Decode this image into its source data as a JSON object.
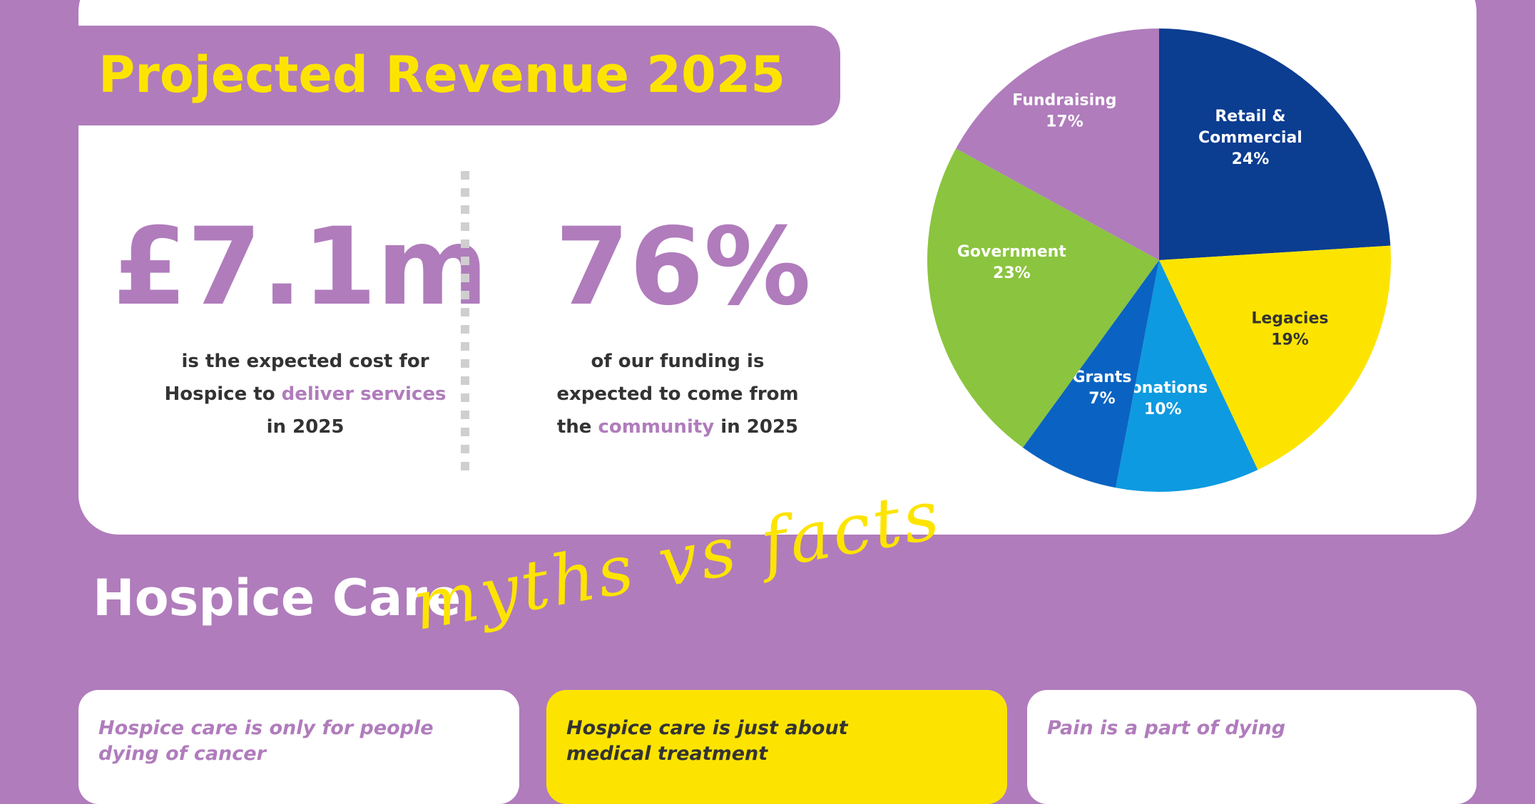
{
  "header": {
    "title": "Projected Revenue 2025"
  },
  "stats": [
    {
      "value": "£7.1m",
      "desc_lines": [
        {
          "before": "is the expected cost for",
          "highlight": "",
          "after": ""
        },
        {
          "before": "Hospice to ",
          "highlight": "deliver services",
          "after": ""
        },
        {
          "before": "in 2025",
          "highlight": "",
          "after": ""
        }
      ]
    },
    {
      "value": "76%",
      "desc_lines": [
        {
          "before": "of our funding is",
          "highlight": "",
          "after": ""
        },
        {
          "before": "expected to come from",
          "highlight": "",
          "after": ""
        },
        {
          "before": "the ",
          "highlight": "community",
          "after": " in 2025"
        }
      ]
    }
  ],
  "chart_data": {
    "type": "pie",
    "title": "",
    "slices": [
      {
        "name": "Retail & Commercial",
        "label_lines": [
          "Retail &",
          "Commercial",
          "24%"
        ],
        "value": 24,
        "color": "#0b3d91",
        "text_color": "#ffffff"
      },
      {
        "name": "Legacies",
        "label_lines": [
          "Legacies",
          "19%"
        ],
        "value": 19,
        "color": "#fde400",
        "text_color": "#333333"
      },
      {
        "name": "Donations",
        "label_lines": [
          "Donations",
          "10%"
        ],
        "value": 10,
        "color": "#0d9ae0",
        "text_color": "#ffffff"
      },
      {
        "name": "Grants",
        "label_lines": [
          "Grants",
          "7%"
        ],
        "value": 7,
        "color": "#0a63c2",
        "text_color": "#ffffff"
      },
      {
        "name": "Government",
        "label_lines": [
          "Government",
          "23%"
        ],
        "value": 23,
        "color": "#8bc43f",
        "text_color": "#ffffff"
      },
      {
        "name": "Fundraising",
        "label_lines": [
          "Fundraising",
          "17%"
        ],
        "value": 17,
        "color": "#b07cbc",
        "text_color": "#ffffff"
      }
    ]
  },
  "section": {
    "title": "Hospice Care",
    "subtitle": "myths vs facts"
  },
  "myths": [
    {
      "line1": "Hospice care is only for people",
      "line2": "dying of cancer",
      "bg": "#ffffff",
      "text_color": "#b07cbc"
    },
    {
      "line1": "Hospice care is just about",
      "line2": "medical treatment",
      "bg": "#fde400",
      "text_color": "#333333"
    },
    {
      "line1": "Pain is a part of dying",
      "line2": "",
      "bg": "#ffffff",
      "text_color": "#b07cbc"
    }
  ],
  "colors": {
    "background": "#b07cbc",
    "accent": "#fde400",
    "panel": "#ffffff",
    "text": "#333333"
  }
}
